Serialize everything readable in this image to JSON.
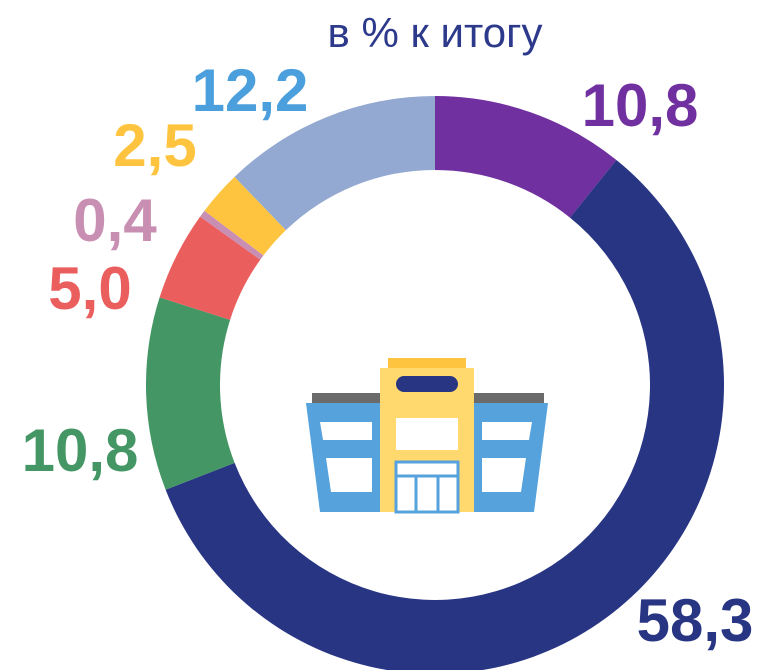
{
  "chart_data": {
    "type": "donut",
    "title": "в % к итогу",
    "values": [
      10.8,
      58.3,
      10.8,
      5.0,
      0.4,
      2.5,
      12.2
    ],
    "value_labels": [
      "10,8",
      "58,3",
      "10,8",
      "5,0",
      "0,4",
      "2,5",
      "12,2"
    ],
    "colors": [
      "#7030a0",
      "#283583",
      "#449664",
      "#eb5e5e",
      "#c98fb3",
      "#ffc43f",
      "#94a9d1"
    ],
    "label_colors": [
      "#7030a0",
      "#283583",
      "#449664",
      "#eb5e5e",
      "#c98fb3",
      "#ffc43f",
      "#4a9fdc"
    ]
  }
}
